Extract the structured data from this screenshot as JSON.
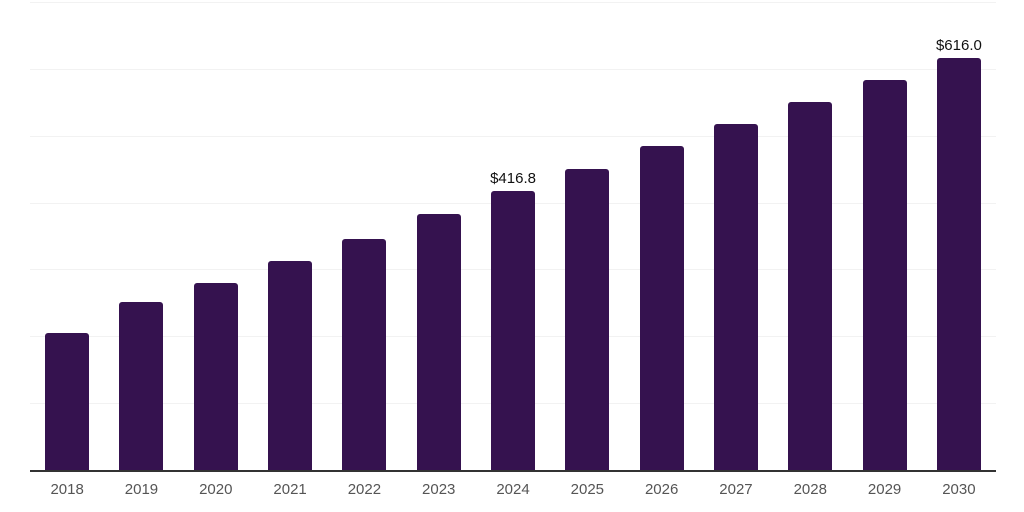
{
  "chart_data": {
    "type": "bar",
    "title": "",
    "xlabel": "",
    "ylabel": "",
    "categories": [
      "2018",
      "2019",
      "2020",
      "2021",
      "2022",
      "2023",
      "2024",
      "2025",
      "2026",
      "2027",
      "2028",
      "2029",
      "2030"
    ],
    "values": [
      205,
      252,
      279,
      313,
      346,
      383,
      416.8,
      450,
      485,
      518,
      551,
      584,
      616
    ],
    "value_labels": {
      "2024": "$416.8",
      "2030": "$616.0"
    },
    "ylim": [
      0,
      700
    ],
    "gridline_step": 100,
    "grid": "horizontal, light gray, no y-axis tick labels",
    "legend": "none",
    "colors": {
      "bar": "#35124f",
      "gridline": "#f2f2f2",
      "axis_line": "#333333",
      "tick_label": "#555555",
      "value_label": "#111111",
      "background": "#ffffff"
    }
  }
}
